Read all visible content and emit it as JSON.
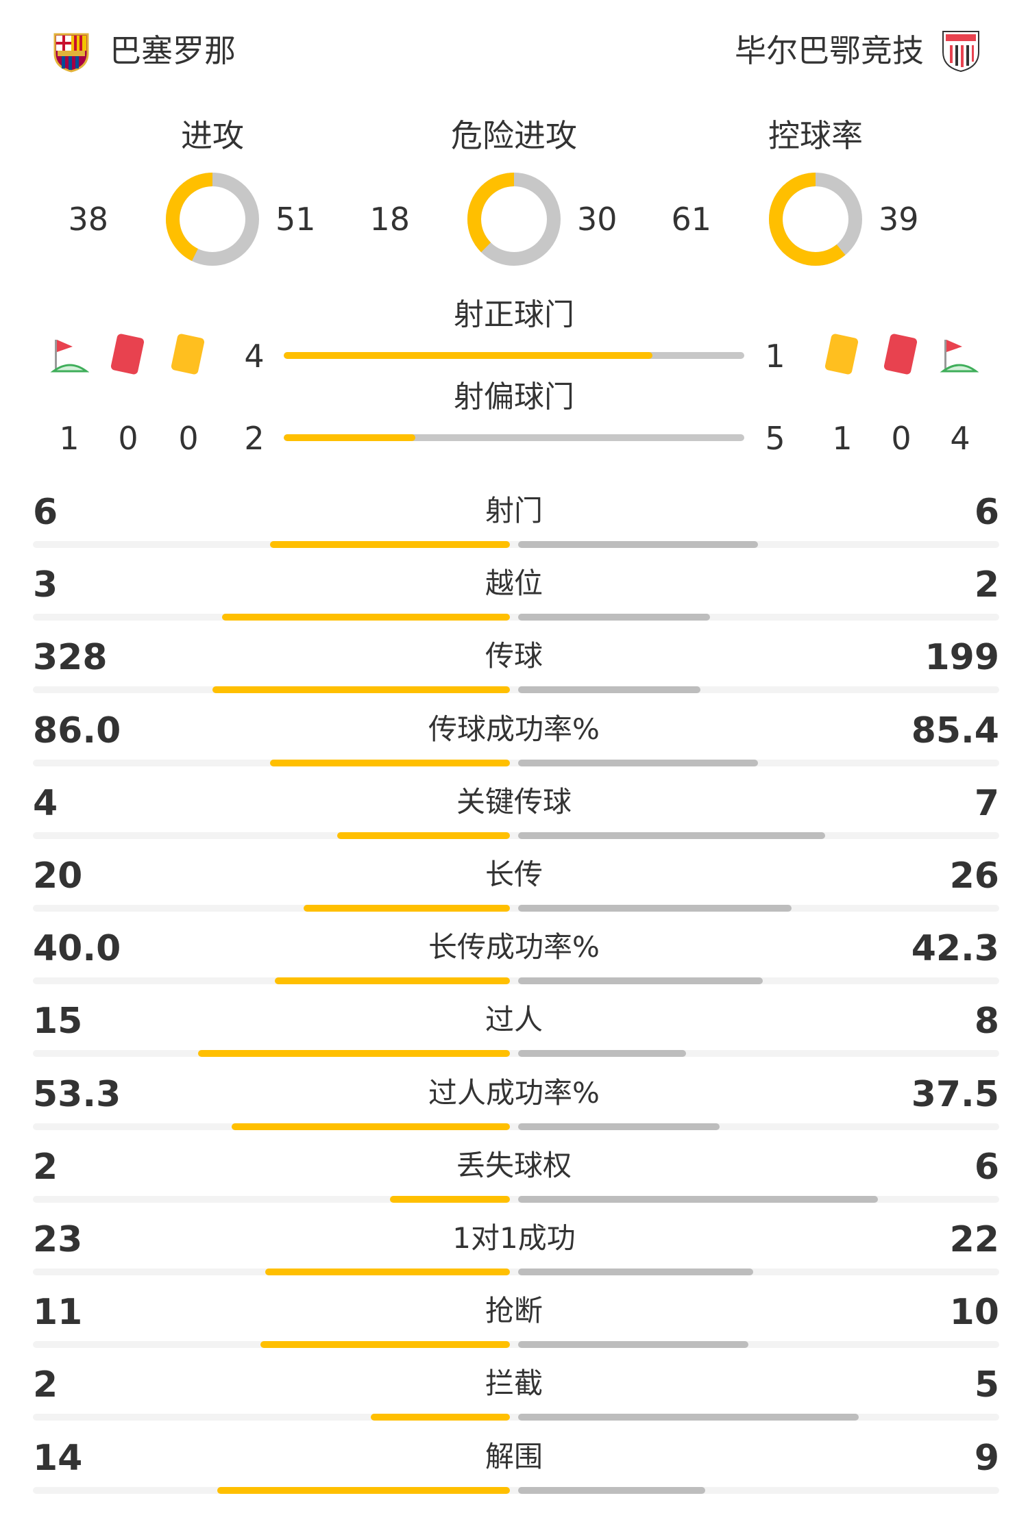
{
  "home_team": {
    "name": "巴塞罗那",
    "crest_icon": "barcelona-crest-icon"
  },
  "away_team": {
    "name": "毕尔巴鄂竞技",
    "crest_icon": "athletic-bilbao-crest-icon"
  },
  "rings": [
    {
      "label": "进攻",
      "home": "38",
      "away": "51",
      "home_value": 38,
      "away_value": 51
    },
    {
      "label": "危险进攻",
      "home": "18",
      "away": "30",
      "home_value": 18,
      "away_value": 30
    },
    {
      "label": "控球率",
      "home": "61",
      "away": "39",
      "home_value": 61,
      "away_value": 39
    }
  ],
  "shots_on_target": {
    "label": "射正球门",
    "home": "4",
    "away": "1",
    "home_value": 4,
    "away_value": 1
  },
  "shots_off_target": {
    "label": "射偏球门",
    "home": "2",
    "away": "5",
    "home_value": 2,
    "away_value": 5
  },
  "home_counts": {
    "corners": "1",
    "red_cards": "0",
    "yellow_cards": "0"
  },
  "away_counts": {
    "yellow_cards": "1",
    "red_cards": "0",
    "corners": "4"
  },
  "colors": {
    "home": "#ffbf00",
    "away": "#c7c7c7",
    "red_card": "#e8424f",
    "yellow_card": "#ffbf1f",
    "corner_green": "#3fae5a"
  },
  "stats": [
    {
      "label": "射门",
      "home": "6",
      "away": "6",
      "home_fill": 0.5,
      "away_fill": 0.5
    },
    {
      "label": "越位",
      "home": "3",
      "away": "2",
      "home_fill": 0.6,
      "away_fill": 0.4
    },
    {
      "label": "传球",
      "home": "328",
      "away": "199",
      "home_fill": 0.62,
      "away_fill": 0.38
    },
    {
      "label": "传球成功率%",
      "home": "86.0",
      "away": "85.4",
      "home_fill": 0.5,
      "away_fill": 0.5
    },
    {
      "label": "关键传球",
      "home": "4",
      "away": "7",
      "home_fill": 0.36,
      "away_fill": 0.64
    },
    {
      "label": "长传",
      "home": "20",
      "away": "26",
      "home_fill": 0.43,
      "away_fill": 0.57
    },
    {
      "label": "长传成功率%",
      "home": "40.0",
      "away": "42.3",
      "home_fill": 0.49,
      "away_fill": 0.51
    },
    {
      "label": "过人",
      "home": "15",
      "away": "8",
      "home_fill": 0.65,
      "away_fill": 0.35
    },
    {
      "label": "过人成功率%",
      "home": "53.3",
      "away": "37.5",
      "home_fill": 0.58,
      "away_fill": 0.42
    },
    {
      "label": "丢失球权",
      "home": "2",
      "away": "6",
      "home_fill": 0.25,
      "away_fill": 0.75
    },
    {
      "label": "1对1成功",
      "home": "23",
      "away": "22",
      "home_fill": 0.51,
      "away_fill": 0.49
    },
    {
      "label": "抢断",
      "home": "11",
      "away": "10",
      "home_fill": 0.52,
      "away_fill": 0.48
    },
    {
      "label": "拦截",
      "home": "2",
      "away": "5",
      "home_fill": 0.29,
      "away_fill": 0.71
    },
    {
      "label": "解围",
      "home": "14",
      "away": "9",
      "home_fill": 0.61,
      "away_fill": 0.39
    }
  ]
}
